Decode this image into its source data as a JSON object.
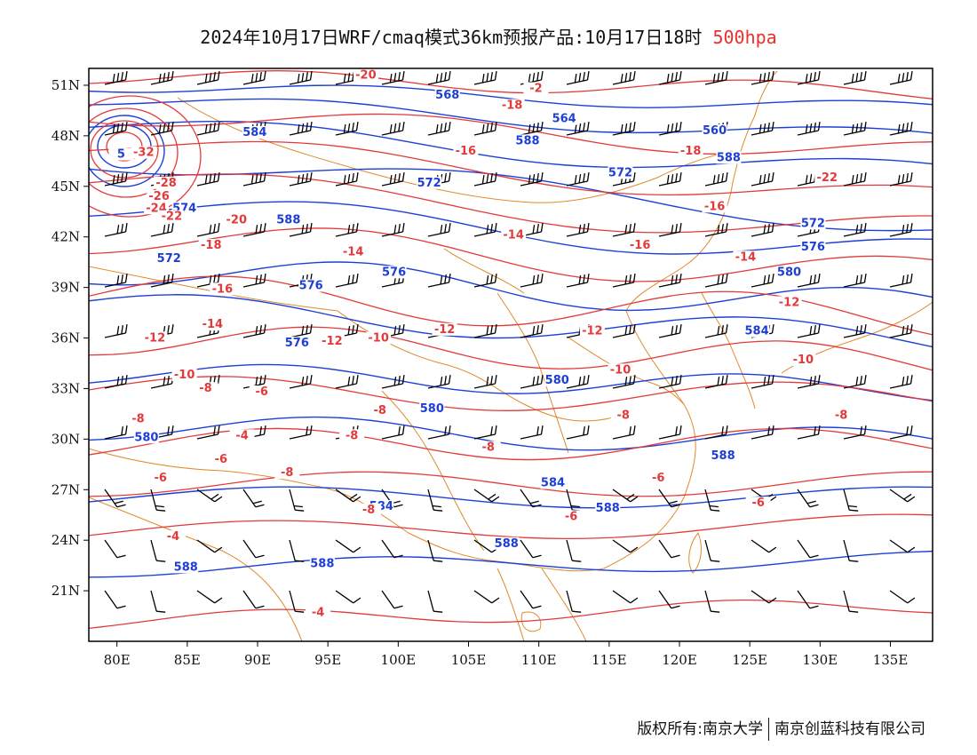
{
  "title": {
    "main": "2024年10月17日WRF/cmaq模式36km预报产品:10月17日18时",
    "level": "500hpa"
  },
  "map": {
    "lon_range": [
      78,
      138
    ],
    "lat_range": [
      18,
      52
    ],
    "x_ticks": [
      "80E",
      "85E",
      "90E",
      "95E",
      "100E",
      "105E",
      "110E",
      "115E",
      "120E",
      "125E",
      "130E",
      "135E"
    ],
    "y_ticks": [
      "51N",
      "48N",
      "45N",
      "42N",
      "39N",
      "36N",
      "33N",
      "30N",
      "27N",
      "24N",
      "21N"
    ],
    "colors": {
      "height": "#1d3fd6",
      "temperature": "#e23a3a",
      "border": "#e08a2c",
      "barb": "#000000"
    }
  },
  "height_labels": [
    {
      "text": "568",
      "lon": 103.5,
      "lat": 50.2
    },
    {
      "text": "564",
      "lon": 111.8,
      "lat": 48.8
    },
    {
      "text": "560",
      "lon": 122.5,
      "lat": 48.1
    },
    {
      "text": "584",
      "lon": 89.8,
      "lat": 48.0
    },
    {
      "text": "588",
      "lon": 109.2,
      "lat": 47.5
    },
    {
      "text": "588",
      "lon": 123.5,
      "lat": 46.5
    },
    {
      "text": "572",
      "lon": 102.2,
      "lat": 45.0
    },
    {
      "text": "572",
      "lon": 115.8,
      "lat": 45.6
    },
    {
      "text": "572",
      "lon": 129.5,
      "lat": 42.6
    },
    {
      "text": "576",
      "lon": 129.5,
      "lat": 41.2
    },
    {
      "text": "580",
      "lon": 127.8,
      "lat": 39.7
    },
    {
      "text": "584",
      "lon": 125.5,
      "lat": 36.2
    },
    {
      "text": "576",
      "lon": 93.8,
      "lat": 38.9
    },
    {
      "text": "576",
      "lon": 99.7,
      "lat": 39.7
    },
    {
      "text": "576",
      "lon": 92.8,
      "lat": 35.5
    },
    {
      "text": "580",
      "lon": 111.3,
      "lat": 33.3
    },
    {
      "text": "580",
      "lon": 102.4,
      "lat": 31.6
    },
    {
      "text": "580",
      "lon": 82.1,
      "lat": 29.9
    },
    {
      "text": "572",
      "lon": 83.7,
      "lat": 40.5
    },
    {
      "text": "5",
      "lon": 80.3,
      "lat": 46.7
    },
    {
      "text": "574",
      "lon": 84.8,
      "lat": 43.5
    },
    {
      "text": "588",
      "lon": 92.2,
      "lat": 42.8
    },
    {
      "text": "584",
      "lon": 111.0,
      "lat": 27.2
    },
    {
      "text": "584",
      "lon": 98.8,
      "lat": 25.8
    },
    {
      "text": "588",
      "lon": 114.9,
      "lat": 25.7
    },
    {
      "text": "588",
      "lon": 123.1,
      "lat": 28.8
    },
    {
      "text": "588",
      "lon": 107.7,
      "lat": 23.6
    },
    {
      "text": "588",
      "lon": 84.9,
      "lat": 22.2
    },
    {
      "text": "588",
      "lon": 94.6,
      "lat": 22.4
    }
  ],
  "temperature_labels": [
    {
      "text": "-20",
      "lon": 97.7,
      "lat": 51.4
    },
    {
      "text": "-2",
      "lon": 109.8,
      "lat": 50.6
    },
    {
      "text": "-18",
      "lon": 108.1,
      "lat": 49.6
    },
    {
      "text": "-16",
      "lon": 104.8,
      "lat": 46.9
    },
    {
      "text": "-18",
      "lon": 120.8,
      "lat": 46.9
    },
    {
      "text": "-32",
      "lon": 81.9,
      "lat": 46.8
    },
    {
      "text": "-28",
      "lon": 83.5,
      "lat": 45.0
    },
    {
      "text": "-26",
      "lon": 83.0,
      "lat": 44.2
    },
    {
      "text": "-24",
      "lon": 82.8,
      "lat": 43.5
    },
    {
      "text": "-22",
      "lon": 83.9,
      "lat": 43.0
    },
    {
      "text": "-20",
      "lon": 88.5,
      "lat": 42.8
    },
    {
      "text": "-18",
      "lon": 86.7,
      "lat": 41.3
    },
    {
      "text": "-22",
      "lon": 130.5,
      "lat": 45.3
    },
    {
      "text": "-16",
      "lon": 122.5,
      "lat": 43.6
    },
    {
      "text": "-14",
      "lon": 108.2,
      "lat": 41.9
    },
    {
      "text": "-16",
      "lon": 117.2,
      "lat": 41.3
    },
    {
      "text": "-14",
      "lon": 124.7,
      "lat": 40.6
    },
    {
      "text": "-14",
      "lon": 96.8,
      "lat": 40.9
    },
    {
      "text": "-16",
      "lon": 87.5,
      "lat": 38.7
    },
    {
      "text": "-12",
      "lon": 127.8,
      "lat": 37.9
    },
    {
      "text": "-14",
      "lon": 86.8,
      "lat": 36.6
    },
    {
      "text": "-12",
      "lon": 82.7,
      "lat": 35.8
    },
    {
      "text": "-12",
      "lon": 95.3,
      "lat": 35.6
    },
    {
      "text": "-10",
      "lon": 98.6,
      "lat": 35.8
    },
    {
      "text": "-12",
      "lon": 103.3,
      "lat": 36.3
    },
    {
      "text": "-12",
      "lon": 113.8,
      "lat": 36.2
    },
    {
      "text": "-10",
      "lon": 84.8,
      "lat": 33.6
    },
    {
      "text": "-8",
      "lon": 86.3,
      "lat": 32.8
    },
    {
      "text": "-6",
      "lon": 90.3,
      "lat": 32.6
    },
    {
      "text": "-10",
      "lon": 115.8,
      "lat": 33.9
    },
    {
      "text": "-10",
      "lon": 128.8,
      "lat": 34.5
    },
    {
      "text": "-8",
      "lon": 81.5,
      "lat": 31.0
    },
    {
      "text": "-8",
      "lon": 98.7,
      "lat": 31.5
    },
    {
      "text": "-8",
      "lon": 116.0,
      "lat": 31.2
    },
    {
      "text": "-8",
      "lon": 131.5,
      "lat": 31.2
    },
    {
      "text": "-4",
      "lon": 88.9,
      "lat": 30.0
    },
    {
      "text": "-8",
      "lon": 96.7,
      "lat": 30.0
    },
    {
      "text": "-8",
      "lon": 106.4,
      "lat": 29.3
    },
    {
      "text": "-6",
      "lon": 87.4,
      "lat": 28.6
    },
    {
      "text": "-6",
      "lon": 83.1,
      "lat": 27.5
    },
    {
      "text": "-8",
      "lon": 92.1,
      "lat": 27.8
    },
    {
      "text": "-6",
      "lon": 118.5,
      "lat": 27.5
    },
    {
      "text": "-6",
      "lon": 125.6,
      "lat": 26.0
    },
    {
      "text": "-8",
      "lon": 97.9,
      "lat": 25.6
    },
    {
      "text": "-6",
      "lon": 112.3,
      "lat": 25.2
    },
    {
      "text": "-4",
      "lon": 84.0,
      "lat": 24.0
    },
    {
      "text": "-4",
      "lon": 94.3,
      "lat": 19.5
    }
  ],
  "credit": {
    "left": "版权所有:南京大学",
    "right": "南京创蓝科技有限公司"
  }
}
